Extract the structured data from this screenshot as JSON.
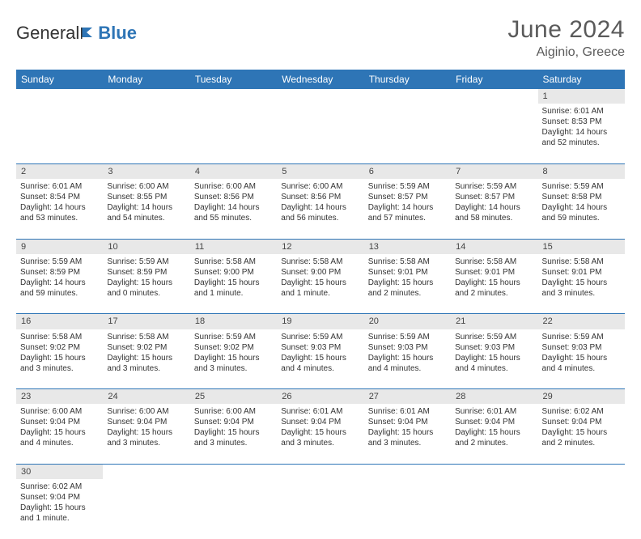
{
  "brand": {
    "part1": "General",
    "part2": "Blue"
  },
  "title": "June 2024",
  "location": "Aiginio, Greece",
  "header_bg": "#2e75b6",
  "row_divider": "#2e75b6",
  "daynum_bg": "#e8e8e8",
  "weekdays": [
    "Sunday",
    "Monday",
    "Tuesday",
    "Wednesday",
    "Thursday",
    "Friday",
    "Saturday"
  ],
  "weeks": [
    {
      "nums": [
        "",
        "",
        "",
        "",
        "",
        "",
        "1"
      ],
      "cells": [
        null,
        null,
        null,
        null,
        null,
        null,
        {
          "sunrise": "6:01 AM",
          "sunset": "8:53 PM",
          "daylight": "14 hours and 52 minutes."
        }
      ]
    },
    {
      "nums": [
        "2",
        "3",
        "4",
        "5",
        "6",
        "7",
        "8"
      ],
      "cells": [
        {
          "sunrise": "6:01 AM",
          "sunset": "8:54 PM",
          "daylight": "14 hours and 53 minutes."
        },
        {
          "sunrise": "6:00 AM",
          "sunset": "8:55 PM",
          "daylight": "14 hours and 54 minutes."
        },
        {
          "sunrise": "6:00 AM",
          "sunset": "8:56 PM",
          "daylight": "14 hours and 55 minutes."
        },
        {
          "sunrise": "6:00 AM",
          "sunset": "8:56 PM",
          "daylight": "14 hours and 56 minutes."
        },
        {
          "sunrise": "5:59 AM",
          "sunset": "8:57 PM",
          "daylight": "14 hours and 57 minutes."
        },
        {
          "sunrise": "5:59 AM",
          "sunset": "8:57 PM",
          "daylight": "14 hours and 58 minutes."
        },
        {
          "sunrise": "5:59 AM",
          "sunset": "8:58 PM",
          "daylight": "14 hours and 59 minutes."
        }
      ]
    },
    {
      "nums": [
        "9",
        "10",
        "11",
        "12",
        "13",
        "14",
        "15"
      ],
      "cells": [
        {
          "sunrise": "5:59 AM",
          "sunset": "8:59 PM",
          "daylight": "14 hours and 59 minutes."
        },
        {
          "sunrise": "5:59 AM",
          "sunset": "8:59 PM",
          "daylight": "15 hours and 0 minutes."
        },
        {
          "sunrise": "5:58 AM",
          "sunset": "9:00 PM",
          "daylight": "15 hours and 1 minute."
        },
        {
          "sunrise": "5:58 AM",
          "sunset": "9:00 PM",
          "daylight": "15 hours and 1 minute."
        },
        {
          "sunrise": "5:58 AM",
          "sunset": "9:01 PM",
          "daylight": "15 hours and 2 minutes."
        },
        {
          "sunrise": "5:58 AM",
          "sunset": "9:01 PM",
          "daylight": "15 hours and 2 minutes."
        },
        {
          "sunrise": "5:58 AM",
          "sunset": "9:01 PM",
          "daylight": "15 hours and 3 minutes."
        }
      ]
    },
    {
      "nums": [
        "16",
        "17",
        "18",
        "19",
        "20",
        "21",
        "22"
      ],
      "cells": [
        {
          "sunrise": "5:58 AM",
          "sunset": "9:02 PM",
          "daylight": "15 hours and 3 minutes."
        },
        {
          "sunrise": "5:58 AM",
          "sunset": "9:02 PM",
          "daylight": "15 hours and 3 minutes."
        },
        {
          "sunrise": "5:59 AM",
          "sunset": "9:02 PM",
          "daylight": "15 hours and 3 minutes."
        },
        {
          "sunrise": "5:59 AM",
          "sunset": "9:03 PM",
          "daylight": "15 hours and 4 minutes."
        },
        {
          "sunrise": "5:59 AM",
          "sunset": "9:03 PM",
          "daylight": "15 hours and 4 minutes."
        },
        {
          "sunrise": "5:59 AM",
          "sunset": "9:03 PM",
          "daylight": "15 hours and 4 minutes."
        },
        {
          "sunrise": "5:59 AM",
          "sunset": "9:03 PM",
          "daylight": "15 hours and 4 minutes."
        }
      ]
    },
    {
      "nums": [
        "23",
        "24",
        "25",
        "26",
        "27",
        "28",
        "29"
      ],
      "cells": [
        {
          "sunrise": "6:00 AM",
          "sunset": "9:04 PM",
          "daylight": "15 hours and 4 minutes."
        },
        {
          "sunrise": "6:00 AM",
          "sunset": "9:04 PM",
          "daylight": "15 hours and 3 minutes."
        },
        {
          "sunrise": "6:00 AM",
          "sunset": "9:04 PM",
          "daylight": "15 hours and 3 minutes."
        },
        {
          "sunrise": "6:01 AM",
          "sunset": "9:04 PM",
          "daylight": "15 hours and 3 minutes."
        },
        {
          "sunrise": "6:01 AM",
          "sunset": "9:04 PM",
          "daylight": "15 hours and 3 minutes."
        },
        {
          "sunrise": "6:01 AM",
          "sunset": "9:04 PM",
          "daylight": "15 hours and 2 minutes."
        },
        {
          "sunrise": "6:02 AM",
          "sunset": "9:04 PM",
          "daylight": "15 hours and 2 minutes."
        }
      ]
    },
    {
      "nums": [
        "30",
        "",
        "",
        "",
        "",
        "",
        ""
      ],
      "cells": [
        {
          "sunrise": "6:02 AM",
          "sunset": "9:04 PM",
          "daylight": "15 hours and 1 minute."
        },
        null,
        null,
        null,
        null,
        null,
        null
      ]
    }
  ],
  "labels": {
    "sunrise": "Sunrise:",
    "sunset": "Sunset:",
    "daylight": "Daylight:"
  }
}
